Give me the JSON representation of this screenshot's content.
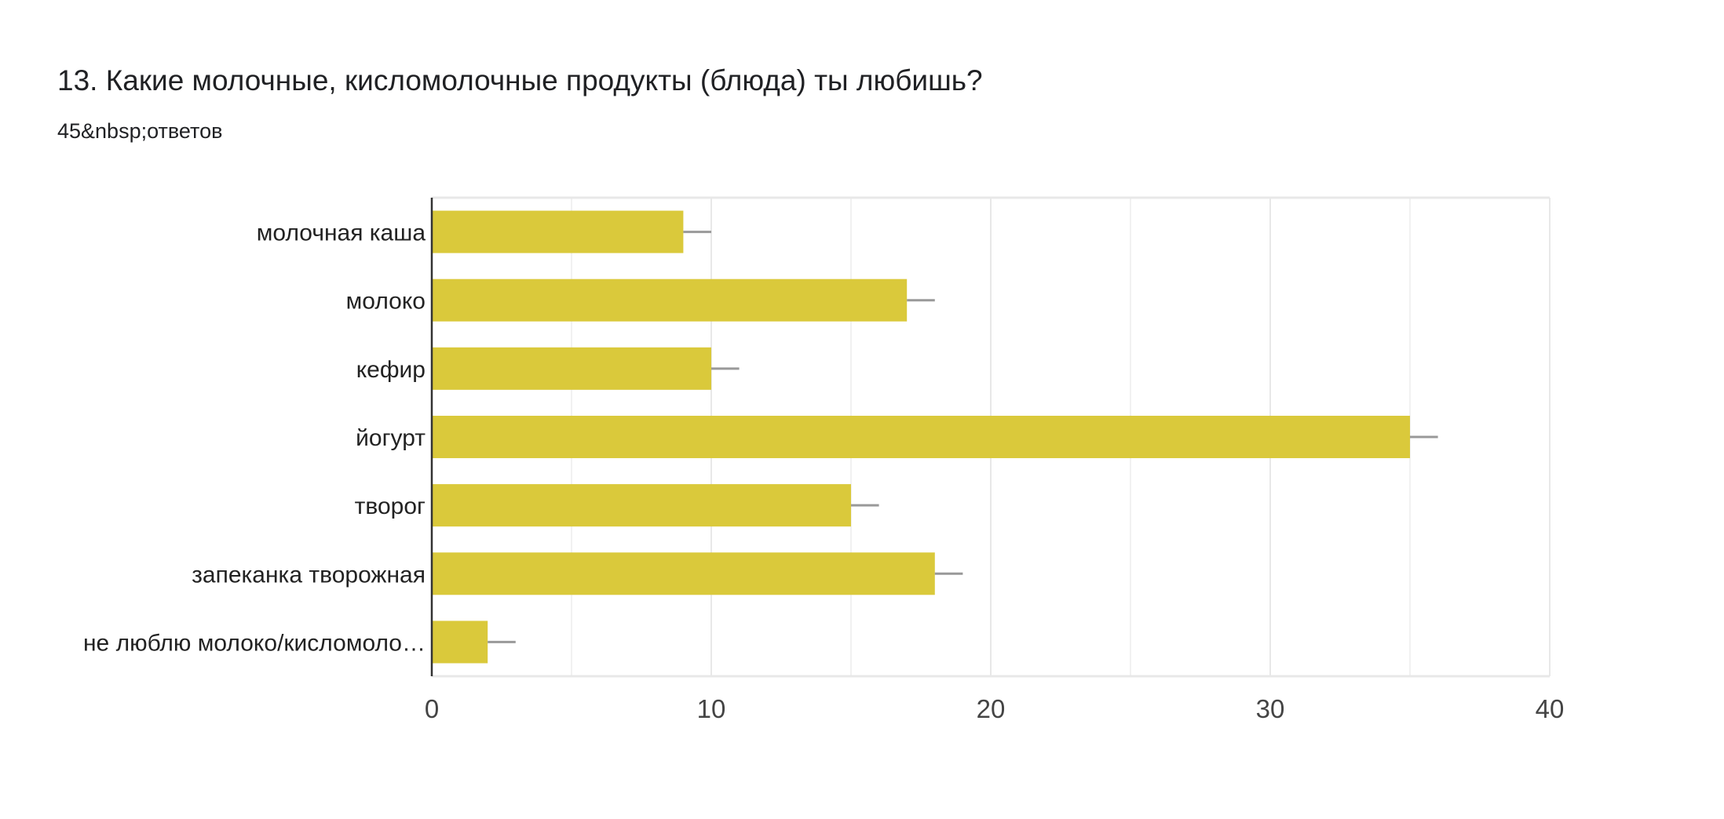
{
  "title": "13. Какие молочные, кисломолочные продукты (блюда) ты любишь?",
  "subtitle": "45&nbsp;ответов",
  "chart_data": {
    "type": "bar",
    "orientation": "horizontal",
    "categories": [
      "молочная каша",
      "молоко",
      "кефир",
      "йогурт",
      "творог",
      "запеканка творожная",
      "не люблю молоко/кисломоло…"
    ],
    "values": [
      9,
      17,
      10,
      35,
      15,
      18,
      2
    ],
    "xlim": [
      0,
      40
    ],
    "xticks": [
      "0",
      "10",
      "20",
      "30",
      "40"
    ],
    "grid": true,
    "bar_color": "#dac93b",
    "error_bar_color": "#999999"
  }
}
